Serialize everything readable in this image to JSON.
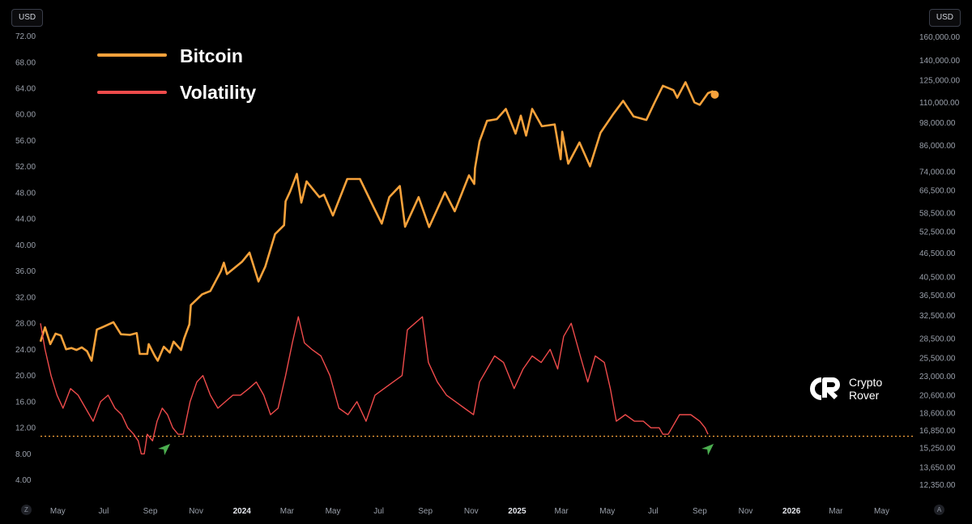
{
  "left_axis_unit": "USD",
  "right_axis_unit": "USD",
  "corner_left": "Z",
  "corner_right": "A",
  "brand": {
    "line1": "Crypto",
    "line2": "Rover"
  },
  "colors": {
    "bitcoin": "#f7a23b",
    "volatility": "#ef4b4b",
    "reference_line": "#f7a23b",
    "arrow": "#4caf50"
  },
  "chart_data": {
    "type": "line",
    "legend_position": "top-left",
    "grid": false,
    "x_ticks": [
      {
        "label": "May",
        "date": "2023-05-01",
        "bold": false
      },
      {
        "label": "Jul",
        "date": "2023-07-01",
        "bold": false
      },
      {
        "label": "Sep",
        "date": "2023-09-01",
        "bold": false
      },
      {
        "label": "Nov",
        "date": "2023-11-01",
        "bold": false
      },
      {
        "label": "2024",
        "date": "2024-01-01",
        "bold": true
      },
      {
        "label": "Mar",
        "date": "2024-03-01",
        "bold": false
      },
      {
        "label": "May",
        "date": "2024-05-01",
        "bold": false
      },
      {
        "label": "Jul",
        "date": "2024-07-01",
        "bold": false
      },
      {
        "label": "Sep",
        "date": "2024-09-01",
        "bold": false
      },
      {
        "label": "Nov",
        "date": "2024-11-01",
        "bold": false
      },
      {
        "label": "2025",
        "date": "2025-01-01",
        "bold": true
      },
      {
        "label": "Mar",
        "date": "2025-03-01",
        "bold": false
      },
      {
        "label": "May",
        "date": "2025-05-01",
        "bold": false
      },
      {
        "label": "Jul",
        "date": "2025-07-01",
        "bold": false
      },
      {
        "label": "Sep",
        "date": "2025-09-01",
        "bold": false
      },
      {
        "label": "Nov",
        "date": "2025-11-01",
        "bold": false
      },
      {
        "label": "2026",
        "date": "2026-01-01",
        "bold": true
      },
      {
        "label": "Mar",
        "date": "2026-03-01",
        "bold": false
      },
      {
        "label": "May",
        "date": "2026-05-01",
        "bold": false
      }
    ],
    "x_range": [
      "2023-04-08",
      "2026-05-22"
    ],
    "left_axis": {
      "ylim": [
        1.6,
        73.8
      ],
      "ticks": [
        "72.00",
        "68.00",
        "64.00",
        "60.00",
        "56.00",
        "52.00",
        "48.00",
        "44.00",
        "40.00",
        "36.00",
        "32.00",
        "28.00",
        "24.00",
        "20.00",
        "16.00",
        "12.00",
        "8.00",
        "4.00"
      ]
    },
    "right_axis": {
      "scale": "log",
      "ylim": [
        11600,
        172000
      ],
      "ticks": [
        "160,000.00",
        "140,000.00",
        "125,000.00",
        "110,000.00",
        "98,000.00",
        "86,000.00",
        "74,000.00",
        "66,500.00",
        "58,500.00",
        "52,500.00",
        "46,500.00",
        "40,500.00",
        "36,500.00",
        "32,500.00",
        "28,500.00",
        "25,500.00",
        "23,000.00",
        "20,600.00",
        "18,600.00",
        "16,850.00",
        "15,250.00",
        "13,650.00",
        "12,350.00"
      ]
    },
    "reference_line": {
      "axis": "left",
      "value": 10.7
    },
    "markers": [
      {
        "name": "arrow-1",
        "date": "2023-09-20",
        "value": 8.8
      },
      {
        "name": "arrow-2",
        "date": "2025-09-12",
        "value": 8.8
      }
    ],
    "series": [
      {
        "name": "Bitcoin",
        "axis": "right",
        "points": [
          [
            "2023-04-08",
            28000
          ],
          [
            "2023-04-14",
            30400
          ],
          [
            "2023-04-21",
            27600
          ],
          [
            "2023-04-28",
            29300
          ],
          [
            "2023-05-05",
            29000
          ],
          [
            "2023-05-12",
            26800
          ],
          [
            "2023-05-19",
            27000
          ],
          [
            "2023-05-26",
            26700
          ],
          [
            "2023-06-02",
            27100
          ],
          [
            "2023-06-09",
            26500
          ],
          [
            "2023-06-15",
            25100
          ],
          [
            "2023-06-22",
            30000
          ],
          [
            "2023-07-01",
            30500
          ],
          [
            "2023-07-14",
            31300
          ],
          [
            "2023-07-24",
            29200
          ],
          [
            "2023-08-05",
            29100
          ],
          [
            "2023-08-14",
            29400
          ],
          [
            "2023-08-18",
            26100
          ],
          [
            "2023-08-28",
            26100
          ],
          [
            "2023-08-30",
            27600
          ],
          [
            "2023-09-07",
            25800
          ],
          [
            "2023-09-11",
            25100
          ],
          [
            "2023-09-19",
            27200
          ],
          [
            "2023-09-27",
            26300
          ],
          [
            "2023-10-02",
            28000
          ],
          [
            "2023-10-12",
            26700
          ],
          [
            "2023-10-16",
            28500
          ],
          [
            "2023-10-23",
            30900
          ],
          [
            "2023-10-25",
            34500
          ],
          [
            "2023-11-09",
            36700
          ],
          [
            "2023-11-20",
            37400
          ],
          [
            "2023-12-04",
            41900
          ],
          [
            "2023-12-08",
            44000
          ],
          [
            "2023-12-12",
            41200
          ],
          [
            "2024-01-01",
            44200
          ],
          [
            "2024-01-11",
            46600
          ],
          [
            "2024-01-23",
            39500
          ],
          [
            "2024-02-01",
            43000
          ],
          [
            "2024-02-14",
            51800
          ],
          [
            "2024-02-26",
            54500
          ],
          [
            "2024-02-28",
            62500
          ],
          [
            "2024-03-05",
            66000
          ],
          [
            "2024-03-14",
            73100
          ],
          [
            "2024-03-20",
            62000
          ],
          [
            "2024-03-27",
            70000
          ],
          [
            "2024-04-13",
            64000
          ],
          [
            "2024-04-19",
            64900
          ],
          [
            "2024-05-01",
            57600
          ],
          [
            "2024-05-20",
            71000
          ],
          [
            "2024-06-06",
            71000
          ],
          [
            "2024-06-24",
            60500
          ],
          [
            "2024-07-05",
            55000
          ],
          [
            "2024-07-15",
            64000
          ],
          [
            "2024-07-29",
            68200
          ],
          [
            "2024-08-05",
            54000
          ],
          [
            "2024-08-23",
            64000
          ],
          [
            "2024-09-06",
            53900
          ],
          [
            "2024-09-27",
            65800
          ],
          [
            "2024-10-10",
            59000
          ],
          [
            "2024-10-29",
            72500
          ],
          [
            "2024-11-05",
            69000
          ],
          [
            "2024-11-06",
            75500
          ],
          [
            "2024-11-12",
            88000
          ],
          [
            "2024-11-22",
            99000
          ],
          [
            "2024-12-05",
            100000
          ],
          [
            "2024-12-17",
            106000
          ],
          [
            "2024-12-30",
            92000
          ],
          [
            "2025-01-06",
            102000
          ],
          [
            "2025-01-13",
            91000
          ],
          [
            "2025-01-21",
            106000
          ],
          [
            "2025-02-03",
            96000
          ],
          [
            "2025-02-20",
            97000
          ],
          [
            "2025-02-28",
            79500
          ],
          [
            "2025-03-02",
            93000
          ],
          [
            "2025-03-10",
            77500
          ],
          [
            "2025-03-25",
            87500
          ],
          [
            "2025-04-08",
            76300
          ],
          [
            "2025-04-22",
            92500
          ],
          [
            "2025-05-09",
            103000
          ],
          [
            "2025-05-22",
            111000
          ],
          [
            "2025-06-05",
            101500
          ],
          [
            "2025-06-22",
            99500
          ],
          [
            "2025-07-03",
            110000
          ],
          [
            "2025-07-14",
            121000
          ],
          [
            "2025-07-28",
            118000
          ],
          [
            "2025-08-02",
            113000
          ],
          [
            "2025-08-13",
            123500
          ],
          [
            "2025-08-25",
            110000
          ],
          [
            "2025-09-01",
            108500
          ],
          [
            "2025-09-12",
            116000
          ],
          [
            "2025-09-18",
            117200
          ],
          [
            "2025-09-21",
            115000
          ]
        ]
      },
      {
        "name": "Volatility",
        "axis": "left",
        "points": [
          [
            "2023-04-08",
            28
          ],
          [
            "2023-04-14",
            24
          ],
          [
            "2023-04-22",
            20
          ],
          [
            "2023-04-30",
            17
          ],
          [
            "2023-05-08",
            15
          ],
          [
            "2023-05-18",
            18
          ],
          [
            "2023-05-28",
            17
          ],
          [
            "2023-06-07",
            15
          ],
          [
            "2023-06-17",
            13
          ],
          [
            "2023-06-27",
            16
          ],
          [
            "2023-07-07",
            17
          ],
          [
            "2023-07-16",
            15
          ],
          [
            "2023-07-25",
            14
          ],
          [
            "2023-08-02",
            12
          ],
          [
            "2023-08-10",
            11
          ],
          [
            "2023-08-16",
            10
          ],
          [
            "2023-08-20",
            8
          ],
          [
            "2023-08-24",
            8
          ],
          [
            "2023-08-28",
            11
          ],
          [
            "2023-09-04",
            10
          ],
          [
            "2023-09-10",
            13
          ],
          [
            "2023-09-17",
            15
          ],
          [
            "2023-09-24",
            14
          ],
          [
            "2023-10-01",
            12
          ],
          [
            "2023-10-08",
            11
          ],
          [
            "2023-10-15",
            11
          ],
          [
            "2023-10-24",
            16
          ],
          [
            "2023-11-02",
            19
          ],
          [
            "2023-11-10",
            20
          ],
          [
            "2023-11-20",
            17
          ],
          [
            "2023-11-30",
            15
          ],
          [
            "2023-12-10",
            16
          ],
          [
            "2023-12-20",
            17
          ],
          [
            "2023-12-30",
            17
          ],
          [
            "2024-01-10",
            18
          ],
          [
            "2024-01-20",
            19
          ],
          [
            "2024-01-30",
            17
          ],
          [
            "2024-02-08",
            14
          ],
          [
            "2024-02-18",
            15
          ],
          [
            "2024-02-28",
            20
          ],
          [
            "2024-03-08",
            25
          ],
          [
            "2024-03-16",
            29
          ],
          [
            "2024-03-24",
            25
          ],
          [
            "2024-04-03",
            24
          ],
          [
            "2024-04-15",
            23
          ],
          [
            "2024-04-27",
            20
          ],
          [
            "2024-05-09",
            15
          ],
          [
            "2024-05-21",
            14
          ],
          [
            "2024-06-02",
            16
          ],
          [
            "2024-06-14",
            13
          ],
          [
            "2024-06-26",
            17
          ],
          [
            "2024-07-08",
            18
          ],
          [
            "2024-07-20",
            19
          ],
          [
            "2024-08-01",
            20
          ],
          [
            "2024-08-08",
            27
          ],
          [
            "2024-08-18",
            28
          ],
          [
            "2024-08-28",
            29
          ],
          [
            "2024-09-05",
            22
          ],
          [
            "2024-09-17",
            19
          ],
          [
            "2024-09-29",
            17
          ],
          [
            "2024-10-11",
            16
          ],
          [
            "2024-10-23",
            15
          ],
          [
            "2024-11-04",
            14
          ],
          [
            "2024-11-12",
            19
          ],
          [
            "2024-11-22",
            21
          ],
          [
            "2024-12-02",
            23
          ],
          [
            "2024-12-14",
            22
          ],
          [
            "2024-12-28",
            18
          ],
          [
            "2025-01-09",
            21
          ],
          [
            "2025-01-21",
            23
          ],
          [
            "2025-02-02",
            22
          ],
          [
            "2025-02-14",
            24
          ],
          [
            "2025-02-24",
            21
          ],
          [
            "2025-03-04",
            26
          ],
          [
            "2025-03-14",
            28
          ],
          [
            "2025-03-26",
            23
          ],
          [
            "2025-04-05",
            19
          ],
          [
            "2025-04-15",
            23
          ],
          [
            "2025-04-27",
            22
          ],
          [
            "2025-05-05",
            18
          ],
          [
            "2025-05-13",
            13
          ],
          [
            "2025-05-25",
            14
          ],
          [
            "2025-06-06",
            13
          ],
          [
            "2025-06-18",
            13
          ],
          [
            "2025-06-28",
            12
          ],
          [
            "2025-07-09",
            12
          ],
          [
            "2025-07-14",
            11
          ],
          [
            "2025-07-21",
            11
          ],
          [
            "2025-08-05",
            14
          ],
          [
            "2025-08-20",
            14
          ],
          [
            "2025-09-01",
            13
          ],
          [
            "2025-09-08",
            12
          ],
          [
            "2025-09-12",
            11
          ]
        ]
      }
    ]
  }
}
